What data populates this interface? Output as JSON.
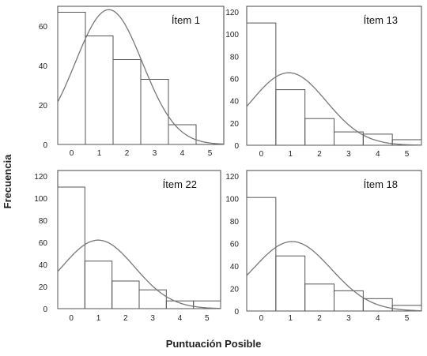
{
  "figure": {
    "ylabel": "Frecuencia",
    "xlabel": "Puntuación Posible"
  },
  "chart_data": [
    {
      "type": "bar",
      "title": "Ítem 1",
      "categories": [
        "0",
        "1",
        "2",
        "3",
        "4",
        "5"
      ],
      "values": [
        67,
        55,
        43,
        33,
        10,
        0
      ],
      "curve": "normal",
      "ylim": [
        0,
        70
      ],
      "yticks": [
        0,
        20,
        40,
        60
      ],
      "xticks": [
        0,
        1,
        2,
        3,
        4,
        5
      ]
    },
    {
      "type": "bar",
      "title": "Ítem 13",
      "categories": [
        "0",
        "1",
        "2",
        "3",
        "4",
        "5"
      ],
      "values": [
        110,
        50,
        24,
        12,
        10,
        5
      ],
      "curve": "normal",
      "ylim": [
        0,
        125
      ],
      "yticks": [
        0,
        20,
        40,
        60,
        80,
        100,
        120
      ],
      "xticks": [
        0,
        1,
        2,
        3,
        4,
        5
      ]
    },
    {
      "type": "bar",
      "title": "Ítem 22",
      "categories": [
        "0",
        "1",
        "2",
        "3",
        "4",
        "5"
      ],
      "values": [
        110,
        43,
        25,
        17,
        7,
        7
      ],
      "curve": "normal",
      "ylim": [
        0,
        125
      ],
      "yticks": [
        0,
        20,
        40,
        60,
        80,
        100,
        120
      ],
      "xticks": [
        0,
        1,
        2,
        3,
        4,
        5
      ]
    },
    {
      "type": "bar",
      "title": "Ítem 18",
      "categories": [
        "0",
        "1",
        "2",
        "3",
        "4",
        "5"
      ],
      "values": [
        101,
        49,
        24,
        18,
        11,
        5
      ],
      "curve": "normal",
      "ylim": [
        0,
        125
      ],
      "yticks": [
        0,
        20,
        40,
        60,
        80,
        100,
        120
      ],
      "xticks": [
        0,
        1,
        2,
        3,
        4,
        5
      ]
    }
  ]
}
